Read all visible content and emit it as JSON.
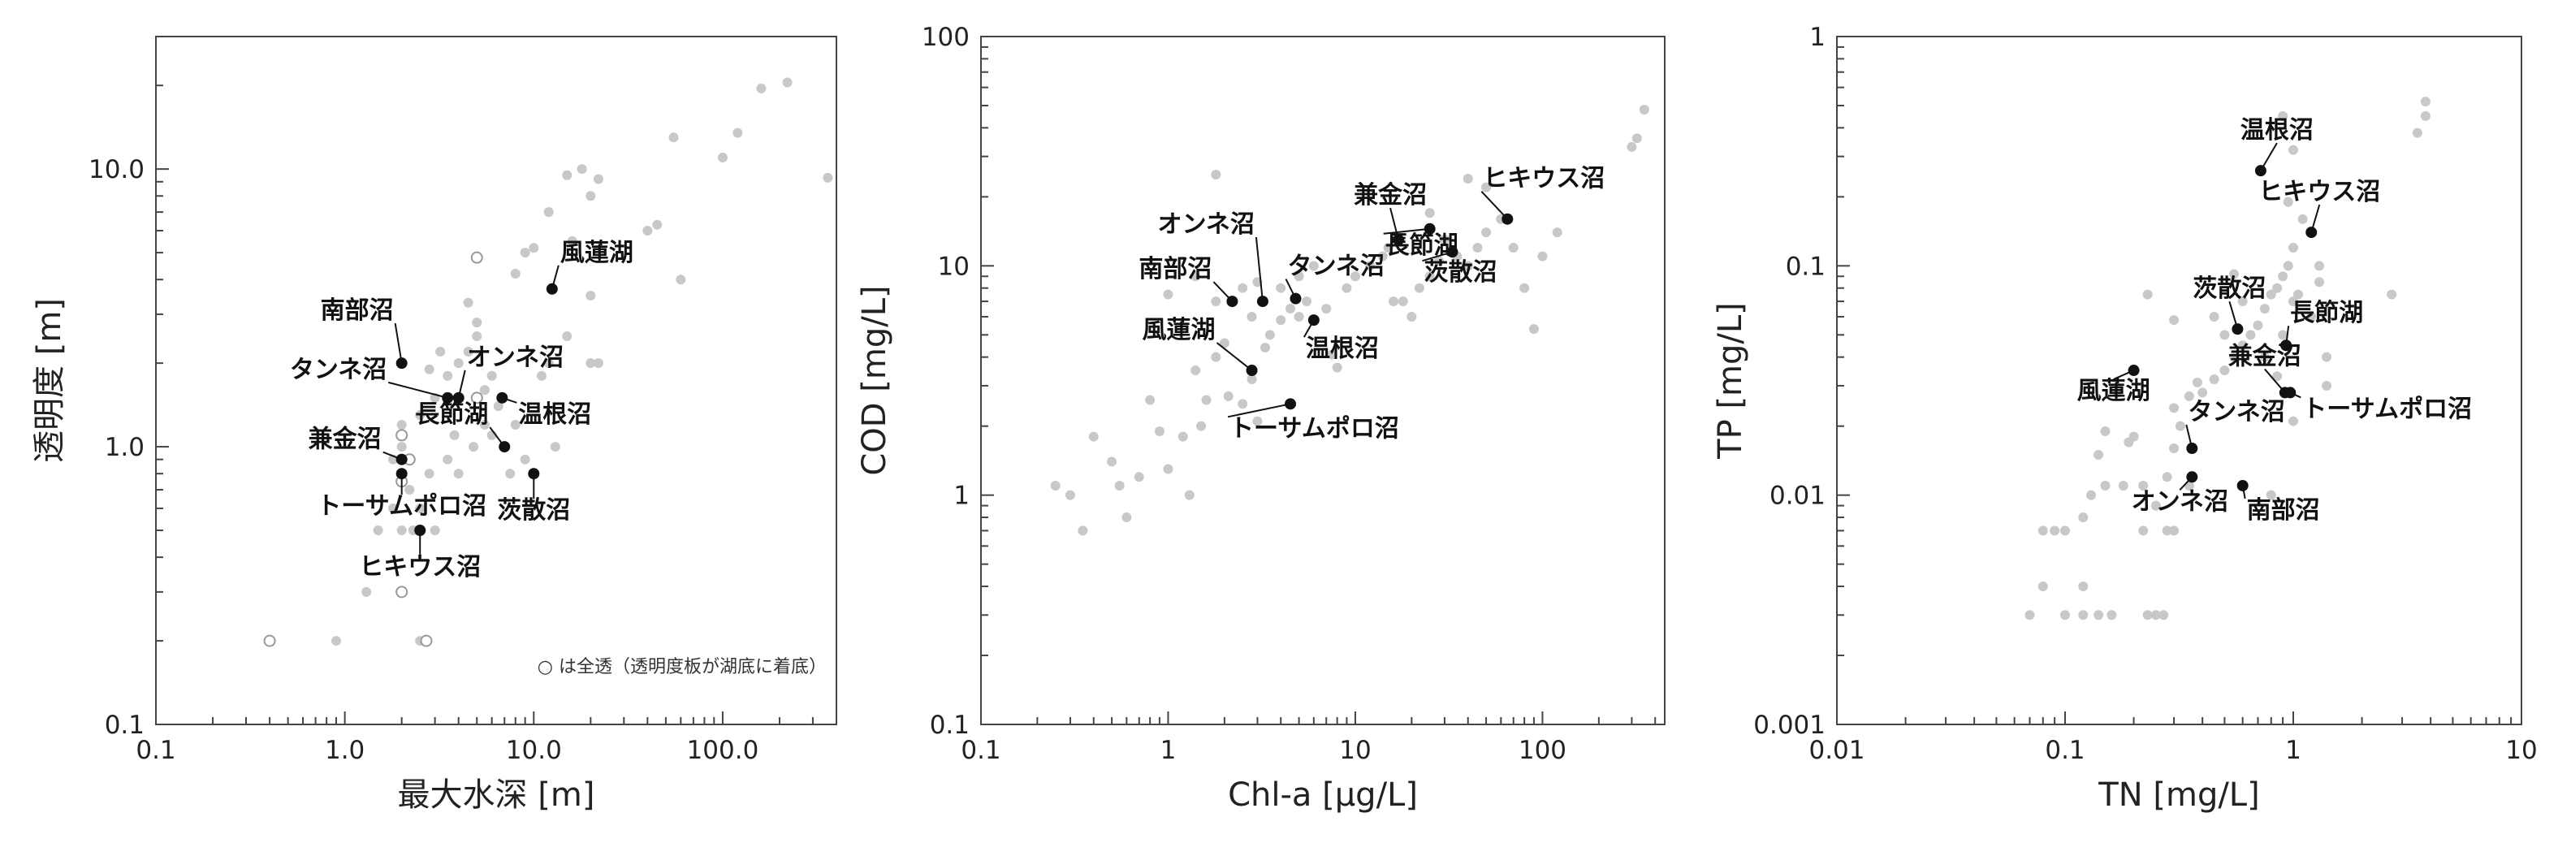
{
  "chart_data": [
    {
      "type": "scatter",
      "title": "",
      "xlabel": "最大水深 [m]",
      "ylabel": "透明度 [m]",
      "xscale": "log",
      "yscale": "log",
      "xlim": [
        0.1,
        400
      ],
      "ylim": [
        0.1,
        30
      ],
      "xticks": [
        {
          "v": 0.1,
          "label": "0.1"
        },
        {
          "v": 1,
          "label": "1.0"
        },
        {
          "v": 10,
          "label": "10.0"
        },
        {
          "v": 100,
          "label": "100.0"
        }
      ],
      "yticks": [
        {
          "v": 0.1,
          "label": "0.1"
        },
        {
          "v": 1,
          "label": "1.0"
        },
        {
          "v": 10,
          "label": "10.0"
        }
      ],
      "note": "○ は全透（透明度板が湖底に着底）",
      "background_points": [
        [
          1.5,
          0.5
        ],
        [
          1.8,
          0.6
        ],
        [
          2.2,
          0.7
        ],
        [
          2.5,
          0.6
        ],
        [
          2.8,
          0.8
        ],
        [
          3.0,
          0.5
        ],
        [
          1.3,
          0.3
        ],
        [
          2.5,
          0.2
        ],
        [
          0.9,
          0.2
        ],
        [
          2.0,
          1.2
        ],
        [
          2.5,
          1.3
        ],
        [
          3.0,
          1.5
        ],
        [
          3.5,
          1.8
        ],
        [
          4.0,
          2.0
        ],
        [
          4.5,
          2.2
        ],
        [
          5.0,
          2.5
        ],
        [
          3.2,
          2.2
        ],
        [
          2.8,
          1.9
        ],
        [
          2.0,
          1.0
        ],
        [
          1.8,
          0.9
        ],
        [
          3.5,
          0.9
        ],
        [
          4.0,
          0.8
        ],
        [
          5.5,
          1.6
        ],
        [
          6.0,
          1.8
        ],
        [
          5.0,
          2.8
        ],
        [
          4.5,
          3.3
        ],
        [
          8.0,
          4.2
        ],
        [
          9.0,
          5.0
        ],
        [
          10.0,
          5.2
        ],
        [
          12.0,
          7.0
        ],
        [
          15.0,
          9.5
        ],
        [
          18.0,
          10.0
        ],
        [
          20.0,
          8.0
        ],
        [
          22.0,
          9.2
        ],
        [
          16.0,
          5.5
        ],
        [
          20.0,
          3.5
        ],
        [
          12.0,
          2.0
        ],
        [
          20.0,
          2.0
        ],
        [
          22.0,
          2.0
        ],
        [
          15.0,
          2.5
        ],
        [
          11.0,
          1.8
        ],
        [
          8.0,
          1.2
        ],
        [
          9.0,
          0.9
        ],
        [
          7.5,
          0.8
        ],
        [
          13.0,
          1.0
        ],
        [
          6.5,
          1.4
        ],
        [
          40.0,
          6.0
        ],
        [
          45.0,
          6.3
        ],
        [
          55.0,
          13.0
        ],
        [
          60.0,
          4.0
        ],
        [
          100.0,
          11.0
        ],
        [
          120.0,
          13.5
        ],
        [
          160.0,
          19.5
        ],
        [
          220.0,
          20.5
        ],
        [
          360.0,
          9.3
        ],
        [
          2.0,
          0.5
        ],
        [
          2.3,
          0.5
        ],
        [
          5.5,
          1.2
        ],
        [
          6.0,
          1.1
        ],
        [
          4.8,
          1.0
        ],
        [
          3.8,
          1.1
        ]
      ],
      "open_points": [
        [
          0.4,
          0.2
        ],
        [
          2.0,
          0.3
        ],
        [
          2.7,
          0.2
        ],
        [
          2.2,
          0.9
        ],
        [
          2.0,
          1.1
        ],
        [
          5.0,
          4.8
        ],
        [
          5.0,
          1.5
        ],
        [
          2.0,
          0.75
        ]
      ],
      "highlight_points": [
        {
          "name": "風蓮湖",
          "x": 12.5,
          "y": 3.7
        },
        {
          "name": "南部沼",
          "x": 2.0,
          "y": 2.0
        },
        {
          "name": "オンネ沼",
          "x": 4.0,
          "y": 1.5
        },
        {
          "name": "タンネ沼",
          "x": 3.5,
          "y": 1.5
        },
        {
          "name": "温根沼",
          "x": 6.8,
          "y": 1.5
        },
        {
          "name": "長節湖",
          "x": 7.0,
          "y": 1.0
        },
        {
          "name": "兼金沼",
          "x": 2.0,
          "y": 0.9
        },
        {
          "name": "トーサムポロ沼",
          "x": 2.0,
          "y": 0.8
        },
        {
          "name": "茨散沼",
          "x": 10.0,
          "y": 0.8
        },
        {
          "name": "ヒキウス沼",
          "x": 2.5,
          "y": 0.5
        }
      ]
    },
    {
      "type": "scatter",
      "title": "",
      "xlabel": "Chl-a [μg/L]",
      "ylabel": "COD [mg/L]",
      "xscale": "log",
      "yscale": "log",
      "xlim": [
        0.1,
        450
      ],
      "ylim": [
        0.1,
        100
      ],
      "xticks": [
        {
          "v": 0.1,
          "label": "0.1"
        },
        {
          "v": 1,
          "label": "1"
        },
        {
          "v": 10,
          "label": "10"
        },
        {
          "v": 100,
          "label": "100"
        }
      ],
      "yticks": [
        {
          "v": 0.1,
          "label": "0.1"
        },
        {
          "v": 1,
          "label": "1"
        },
        {
          "v": 10,
          "label": "10"
        },
        {
          "v": 100,
          "label": "100"
        }
      ],
      "background_points": [
        [
          0.25,
          1.1
        ],
        [
          0.3,
          1.0
        ],
        [
          0.35,
          0.7
        ],
        [
          0.4,
          1.8
        ],
        [
          0.5,
          1.4
        ],
        [
          0.55,
          1.1
        ],
        [
          0.6,
          0.8
        ],
        [
          0.7,
          1.2
        ],
        [
          0.8,
          2.6
        ],
        [
          0.9,
          1.9
        ],
        [
          1.0,
          1.3
        ],
        [
          1.2,
          1.8
        ],
        [
          1.3,
          1.0
        ],
        [
          1.4,
          3.5
        ],
        [
          1.5,
          2.0
        ],
        [
          1.6,
          2.6
        ],
        [
          1.8,
          4.0
        ],
        [
          2.0,
          4.6
        ],
        [
          2.1,
          2.7
        ],
        [
          2.5,
          2.5
        ],
        [
          2.8,
          3.2
        ],
        [
          3.0,
          2.1
        ],
        [
          3.3,
          4.4
        ],
        [
          3.5,
          5.0
        ],
        [
          4.0,
          5.8
        ],
        [
          4.5,
          6.5
        ],
        [
          5.0,
          6.0
        ],
        [
          5.5,
          7.0
        ],
        [
          6.0,
          5.8
        ],
        [
          7.0,
          6.5
        ],
        [
          7.5,
          4.1
        ],
        [
          8.0,
          3.6
        ],
        [
          9.0,
          8.0
        ],
        [
          10.0,
          9.0
        ],
        [
          12.0,
          10.0
        ],
        [
          14.0,
          11.0
        ],
        [
          16.0,
          7.0
        ],
        [
          18.0,
          7.0
        ],
        [
          20.0,
          6.0
        ],
        [
          22.0,
          8.0
        ],
        [
          25.0,
          9.0
        ],
        [
          28.0,
          10.5
        ],
        [
          30.0,
          13.0
        ],
        [
          35.0,
          11.0
        ],
        [
          40.0,
          10.0
        ],
        [
          45.0,
          12.0
        ],
        [
          50.0,
          14.0
        ],
        [
          60.0,
          16.0
        ],
        [
          70.0,
          12.0
        ],
        [
          80.0,
          8.0
        ],
        [
          90.0,
          5.3
        ],
        [
          100.0,
          11.0
        ],
        [
          120.0,
          14.0
        ],
        [
          40.0,
          24.0
        ],
        [
          50.0,
          22.0
        ],
        [
          25.0,
          17.0
        ],
        [
          15.0,
          12.0
        ],
        [
          1.8,
          25.0
        ],
        [
          1.4,
          9.0
        ],
        [
          1.8,
          7.0
        ],
        [
          2.5,
          8.0
        ],
        [
          3.0,
          8.5
        ],
        [
          4.0,
          8.0
        ],
        [
          5.0,
          9.0
        ],
        [
          2.8,
          6.0
        ],
        [
          300.0,
          33.0
        ],
        [
          320.0,
          36.0
        ],
        [
          350.0,
          48.0
        ],
        [
          1.0,
          7.5
        ],
        [
          6.0,
          10.0
        ]
      ],
      "open_points": [],
      "highlight_points": [
        {
          "name": "オンネ沼",
          "x": 3.2,
          "y": 7.0
        },
        {
          "name": "南部沼",
          "x": 2.2,
          "y": 7.0
        },
        {
          "name": "タンネ沼",
          "x": 4.8,
          "y": 7.2
        },
        {
          "name": "風蓮湖",
          "x": 2.8,
          "y": 3.5
        },
        {
          "name": "温根沼",
          "x": 6.0,
          "y": 5.8
        },
        {
          "name": "トーサムポロ沼",
          "x": 4.5,
          "y": 2.5
        },
        {
          "name": "兼金沼",
          "x": 17.0,
          "y": 13.0
        },
        {
          "name": "長節湖",
          "x": 25.0,
          "y": 14.5
        },
        {
          "name": "茨散沼",
          "x": 33.0,
          "y": 11.5
        },
        {
          "name": "ヒキウス沼",
          "x": 65.0,
          "y": 16.0
        }
      ]
    },
    {
      "type": "scatter",
      "title": "",
      "xlabel": "TN [mg/L]",
      "ylabel": "TP [mg/L]",
      "xscale": "log",
      "yscale": "log",
      "xlim": [
        0.01,
        10
      ],
      "ylim": [
        0.001,
        1
      ],
      "xticks": [
        {
          "v": 0.01,
          "label": "0.01"
        },
        {
          "v": 0.1,
          "label": "0.1"
        },
        {
          "v": 1,
          "label": "1"
        },
        {
          "v": 10,
          "label": "10"
        }
      ],
      "yticks": [
        {
          "v": 0.001,
          "label": "0.001"
        },
        {
          "v": 0.01,
          "label": "0.01"
        },
        {
          "v": 0.1,
          "label": "0.1"
        },
        {
          "v": 1,
          "label": "1"
        }
      ],
      "background_points": [
        [
          0.07,
          0.003
        ],
        [
          0.08,
          0.004
        ],
        [
          0.08,
          0.007
        ],
        [
          0.09,
          0.007
        ],
        [
          0.1,
          0.003
        ],
        [
          0.1,
          0.007
        ],
        [
          0.12,
          0.003
        ],
        [
          0.12,
          0.004
        ],
        [
          0.12,
          0.008
        ],
        [
          0.13,
          0.01
        ],
        [
          0.14,
          0.003
        ],
        [
          0.14,
          0.015
        ],
        [
          0.15,
          0.011
        ],
        [
          0.15,
          0.019
        ],
        [
          0.16,
          0.003
        ],
        [
          0.17,
          0.028
        ],
        [
          0.18,
          0.011
        ],
        [
          0.19,
          0.017
        ],
        [
          0.2,
          0.018
        ],
        [
          0.22,
          0.011
        ],
        [
          0.22,
          0.007
        ],
        [
          0.23,
          0.003
        ],
        [
          0.25,
          0.003
        ],
        [
          0.25,
          0.009
        ],
        [
          0.27,
          0.003
        ],
        [
          0.28,
          0.007
        ],
        [
          0.28,
          0.012
        ],
        [
          0.3,
          0.016
        ],
        [
          0.3,
          0.024
        ],
        [
          0.32,
          0.02
        ],
        [
          0.35,
          0.027
        ],
        [
          0.38,
          0.031
        ],
        [
          0.4,
          0.028
        ],
        [
          0.45,
          0.032
        ],
        [
          0.5,
          0.035
        ],
        [
          0.55,
          0.04
        ],
        [
          0.6,
          0.045
        ],
        [
          0.65,
          0.05
        ],
        [
          0.7,
          0.055
        ],
        [
          0.75,
          0.065
        ],
        [
          0.8,
          0.075
        ],
        [
          0.85,
          0.08
        ],
        [
          0.9,
          0.09
        ],
        [
          0.95,
          0.1
        ],
        [
          1.0,
          0.12
        ],
        [
          1.05,
          0.075
        ],
        [
          1.1,
          0.16
        ],
        [
          1.2,
          0.06
        ],
        [
          1.3,
          0.085
        ],
        [
          1.3,
          0.1
        ],
        [
          1.4,
          0.03
        ],
        [
          1.4,
          0.04
        ],
        [
          0.23,
          0.075
        ],
        [
          0.3,
          0.058
        ],
        [
          0.45,
          0.06
        ],
        [
          0.5,
          0.05
        ],
        [
          0.55,
          0.092
        ],
        [
          0.6,
          0.07
        ],
        [
          0.9,
          0.05
        ],
        [
          1.0,
          0.07
        ],
        [
          0.75,
          0.04
        ],
        [
          0.85,
          0.033
        ],
        [
          1.0,
          0.021
        ],
        [
          0.3,
          0.007
        ],
        [
          0.35,
          0.011
        ],
        [
          0.8,
          0.01
        ],
        [
          0.9,
          0.45
        ],
        [
          1.0,
          0.32
        ],
        [
          2.7,
          0.075
        ],
        [
          3.5,
          0.38
        ],
        [
          3.8,
          0.45
        ],
        [
          3.8,
          0.52
        ],
        [
          0.95,
          0.19
        ]
      ],
      "open_points": [],
      "highlight_points": [
        {
          "name": "温根沼",
          "x": 0.72,
          "y": 0.26
        },
        {
          "name": "ヒキウス沼",
          "x": 1.2,
          "y": 0.14
        },
        {
          "name": "茨散沼",
          "x": 0.57,
          "y": 0.053
        },
        {
          "name": "長節湖",
          "x": 0.93,
          "y": 0.045
        },
        {
          "name": "兼金沼",
          "x": 0.92,
          "y": 0.028
        },
        {
          "name": "トーサムポロ沼",
          "x": 0.97,
          "y": 0.028
        },
        {
          "name": "風蓮湖",
          "x": 0.2,
          "y": 0.035
        },
        {
          "name": "タンネ沼",
          "x": 0.36,
          "y": 0.016
        },
        {
          "name": "オンネ沼",
          "x": 0.36,
          "y": 0.012
        },
        {
          "name": "南部沼",
          "x": 0.6,
          "y": 0.011
        }
      ]
    }
  ]
}
